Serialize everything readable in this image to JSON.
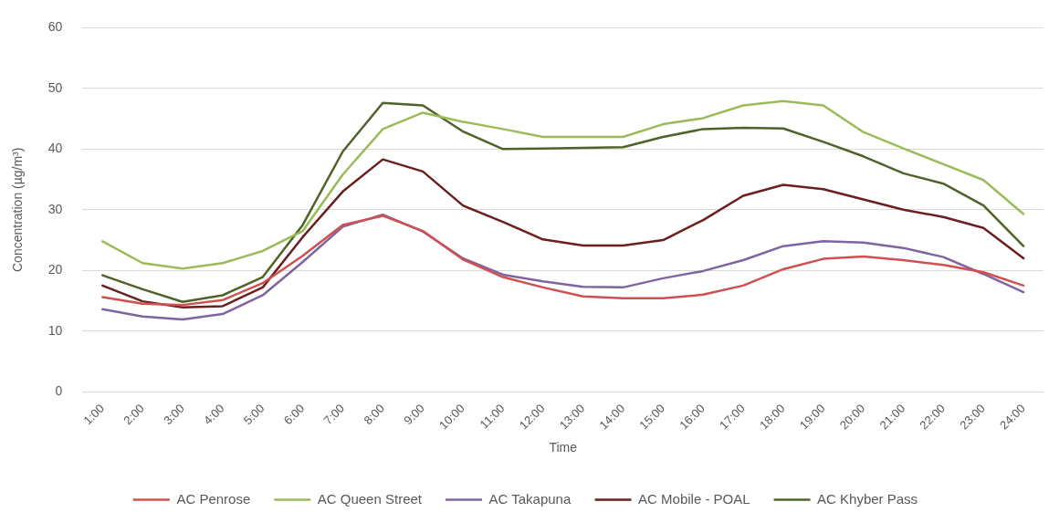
{
  "chart_data": {
    "type": "line",
    "xlabel": "Time",
    "ylabel": "Concentration (µg/m³)",
    "categories": [
      "1:00",
      "2:00",
      "3:00",
      "4:00",
      "5:00",
      "6:00",
      "7:00",
      "8:00",
      "9:00",
      "10:00",
      "11:00",
      "12:00",
      "13:00",
      "14:00",
      "15:00",
      "16:00",
      "17:00",
      "18:00",
      "19:00",
      "20:00",
      "21:00",
      "22:00",
      "23:00",
      "24:00"
    ],
    "series": [
      {
        "name": "AC Penrose",
        "color": "#d0504f",
        "values": [
          15.6,
          14.5,
          14.3,
          15.1,
          17.9,
          22.4,
          27.5,
          29,
          26.5,
          21.8,
          18.9,
          17.2,
          15.7,
          15.4,
          15.4,
          16,
          17.5,
          20.2,
          21.9,
          22.3,
          21.7,
          20.9,
          19.7,
          17.5
        ]
      },
      {
        "name": "AC Queen Street",
        "color": "#9bbb59",
        "values": [
          24.8,
          21.2,
          20.3,
          21.2,
          23.2,
          26.5,
          35.8,
          43.3,
          46,
          44.5,
          43.3,
          42,
          42,
          42,
          44.1,
          45.1,
          47.2,
          47.9,
          47.2,
          42.8,
          40.1,
          37.5,
          34.9,
          29.3
        ]
      },
      {
        "name": "AC Takapuna",
        "color": "#8064a2",
        "values": [
          13.6,
          12.4,
          11.9,
          12.8,
          15.9,
          21.4,
          27.2,
          29.2,
          26.4,
          22,
          19.3,
          18.2,
          17.3,
          17.2,
          18.7,
          19.9,
          21.7,
          24,
          24.8,
          24.6,
          23.7,
          22.2,
          19.4,
          16.4
        ]
      },
      {
        "name": "AC Mobile - POAL",
        "color": "#6b1f1f",
        "values": [
          17.5,
          14.9,
          13.9,
          14.1,
          17.2,
          25.5,
          33,
          38.3,
          36.3,
          30.7,
          28,
          25.1,
          24.1,
          24.1,
          25,
          28.3,
          32.3,
          34.1,
          33.4,
          31.7,
          30,
          28.8,
          27,
          22
        ]
      },
      {
        "name": "AC Khyber Pass",
        "color": "#4f6228",
        "values": [
          19.2,
          16.9,
          14.8,
          15.9,
          18.9,
          27.5,
          39.6,
          47.6,
          47.2,
          42.9,
          40,
          40.1,
          40.2,
          40.3,
          42,
          43.3,
          43.5,
          43.4,
          41.2,
          38.8,
          36,
          34.3,
          30.7,
          24
        ]
      }
    ],
    "ylim": [
      0,
      60
    ],
    "yticks": [
      0,
      10,
      20,
      30,
      40,
      50,
      60
    ],
    "grid": "y",
    "legend": "bottom"
  }
}
